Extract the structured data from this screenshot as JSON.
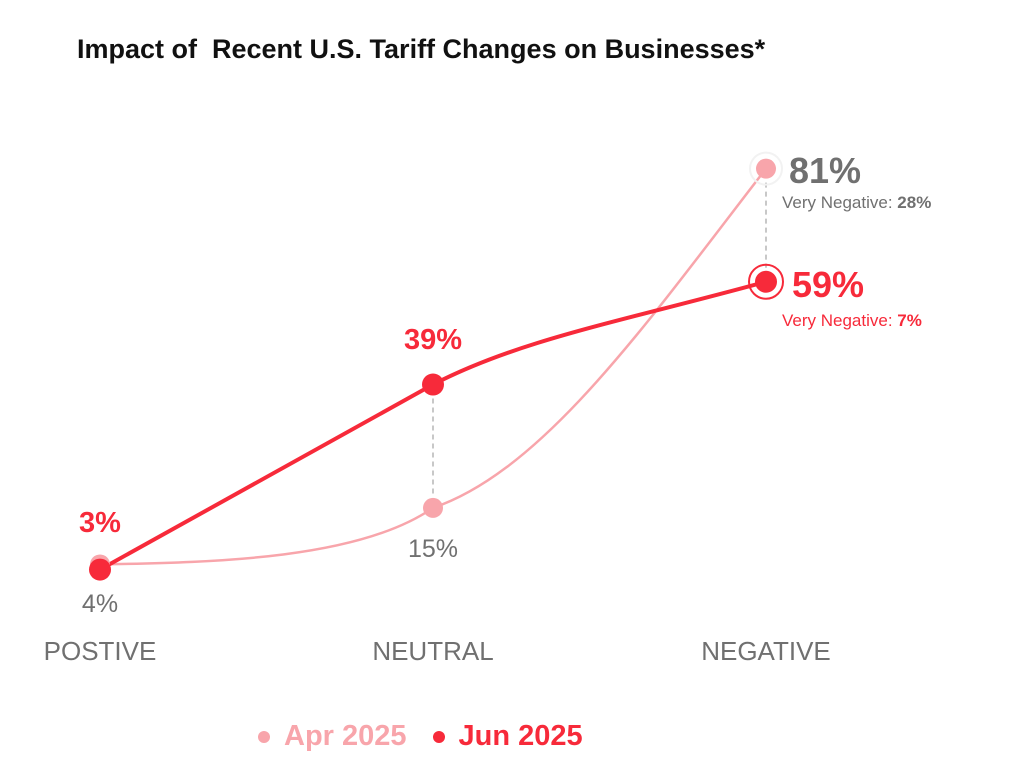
{
  "chart_data": {
    "type": "line",
    "title": "Impact of  Recent U.S. Tariff Changes on Businesses*",
    "categories": [
      "POSTIVE",
      "NEUTRAL",
      "NEGATIVE"
    ],
    "series": [
      {
        "name": "Apr 2025",
        "values": [
          4,
          15,
          81
        ],
        "labels": [
          "4%",
          "15%",
          "81%"
        ],
        "color": "#f8a5ab",
        "label_color": "#707070",
        "very_negative_prefix": "Very Negative: ",
        "very_negative_value": "28%"
      },
      {
        "name": "Jun 2025",
        "values": [
          3,
          39,
          59
        ],
        "labels": [
          "3%",
          "39%",
          "59%"
        ],
        "color": "#f72a3a",
        "label_color": "#f72a3a",
        "very_negative_prefix": "Very Negative: ",
        "very_negative_value": "7%"
      }
    ],
    "ylim": [
      0,
      100
    ],
    "grid": false,
    "legend_position": "bottom-center"
  }
}
